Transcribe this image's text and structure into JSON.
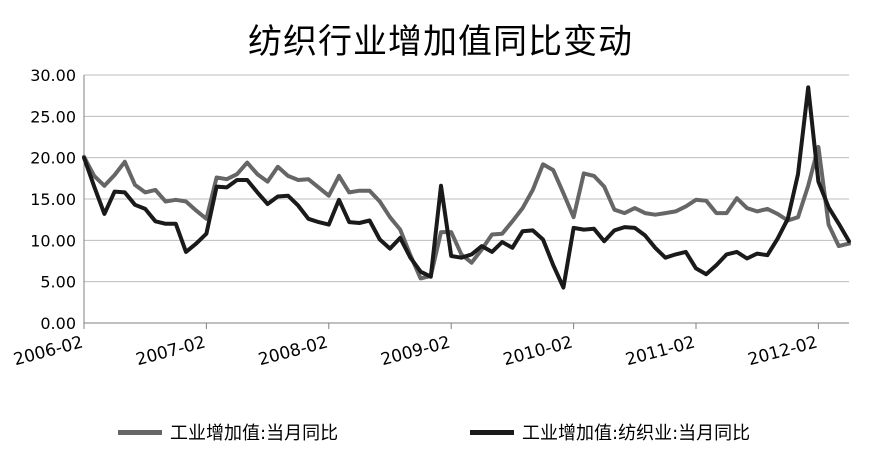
{
  "chart_data": {
    "type": "line",
    "title": "纺织行业增加值同比变动",
    "xlabel": "",
    "ylabel": "",
    "ylim": [
      0,
      30
    ],
    "y_ticks": [
      "0.00",
      "5.00",
      "10.00",
      "15.00",
      "20.00",
      "25.00",
      "30.00"
    ],
    "x_tick_labels": [
      "2006-02",
      "2007-02",
      "2008-02",
      "2009-02",
      "2010-02",
      "2011-02",
      "2012-02"
    ],
    "grid": "horizontal",
    "legend_position": "bottom",
    "months": [
      "2006-02",
      "2006-03",
      "2006-04",
      "2006-05",
      "2006-06",
      "2006-07",
      "2006-08",
      "2006-09",
      "2006-10",
      "2006-11",
      "2006-12",
      "2007-01",
      "2007-02",
      "2007-03",
      "2007-04",
      "2007-05",
      "2007-06",
      "2007-07",
      "2007-08",
      "2007-09",
      "2007-10",
      "2007-11",
      "2007-12",
      "2008-01",
      "2008-02",
      "2008-03",
      "2008-04",
      "2008-05",
      "2008-06",
      "2008-07",
      "2008-08",
      "2008-09",
      "2008-10",
      "2008-11",
      "2008-12",
      "2009-01",
      "2009-02",
      "2009-03",
      "2009-04",
      "2009-05",
      "2009-06",
      "2009-07",
      "2009-08",
      "2009-09",
      "2009-10",
      "2009-11",
      "2009-12",
      "2010-01",
      "2010-02",
      "2010-03",
      "2010-04",
      "2010-05",
      "2010-06",
      "2010-07",
      "2010-08",
      "2010-09",
      "2010-10",
      "2010-11",
      "2010-12",
      "2011-01",
      "2011-02",
      "2011-03",
      "2011-04",
      "2011-05",
      "2011-06",
      "2011-07",
      "2011-08",
      "2011-09",
      "2011-10",
      "2011-11",
      "2011-12",
      "2012-01",
      "2012-02",
      "2012-03",
      "2012-04",
      "2012-05"
    ],
    "series": [
      {
        "name": "工业增加值:当月同比",
        "color": "#666666",
        "values": [
          20.1,
          17.8,
          16.6,
          17.9,
          19.5,
          16.7,
          15.8,
          16.1,
          14.7,
          14.9,
          14.7,
          13.6,
          12.6,
          17.6,
          17.4,
          18.0,
          19.4,
          18.0,
          17.1,
          18.9,
          17.8,
          17.3,
          17.4,
          16.4,
          15.4,
          17.8,
          15.8,
          16.0,
          16.0,
          14.7,
          12.8,
          11.3,
          8.2,
          5.4,
          5.7,
          11.0,
          11.0,
          8.3,
          7.3,
          8.9,
          10.7,
          10.8,
          12.3,
          13.9,
          16.1,
          19.2,
          18.5,
          15.7,
          12.8,
          18.1,
          17.8,
          16.5,
          13.7,
          13.3,
          13.9,
          13.3,
          13.1,
          13.3,
          13.5,
          14.1,
          14.9,
          14.8,
          13.3,
          13.3,
          15.1,
          13.9,
          13.5,
          13.8,
          13.2,
          12.4,
          12.8,
          16.6,
          21.3,
          11.9,
          9.3,
          9.6
        ]
      },
      {
        "name": "工业增加值:纺织业:当月同比",
        "color": "#1a1a1a",
        "values": [
          20.0,
          16.5,
          13.2,
          15.9,
          15.8,
          14.3,
          13.8,
          12.3,
          12.0,
          12.0,
          8.6,
          9.6,
          10.8,
          16.5,
          16.4,
          17.3,
          17.3,
          15.8,
          14.4,
          15.3,
          15.4,
          14.2,
          12.6,
          12.2,
          11.9,
          14.9,
          12.2,
          12.1,
          12.4,
          10.1,
          9.0,
          10.3,
          7.9,
          6.2,
          5.6,
          16.6,
          8.1,
          7.9,
          8.3,
          9.3,
          8.6,
          9.8,
          9.1,
          11.1,
          11.2,
          10.1,
          7.0,
          4.3,
          11.5,
          11.3,
          11.4,
          9.9,
          11.2,
          11.6,
          11.5,
          10.6,
          9.1,
          7.9,
          8.3,
          8.6,
          6.6,
          5.9,
          7.0,
          8.3,
          8.6,
          7.8,
          8.4,
          8.2,
          10.2,
          12.6,
          18.0,
          28.5,
          17.1,
          14.0,
          12.0,
          9.9
        ]
      }
    ]
  }
}
